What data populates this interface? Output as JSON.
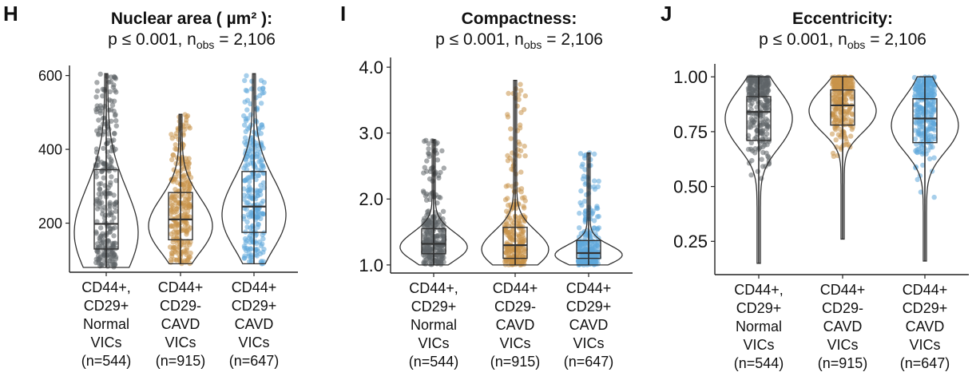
{
  "panels": [
    {
      "label": "H",
      "title": "Nuclear area ( µm² ):",
      "subtitle": {
        "p": "p ≤ 0.001, n",
        "sub": "obs",
        "n": " = 2,106"
      },
      "ylim": [
        80,
        610
      ],
      "yticks": [
        "200",
        "400",
        "600"
      ],
      "ytick_values": [
        200,
        400,
        600
      ]
    },
    {
      "label": "I",
      "title": "Compactness:",
      "subtitle": {
        "p": "p ≤ 0.001, n",
        "sub": "obs",
        "n": " = 2,106"
      },
      "ylim": [
        0.95,
        4.05
      ],
      "yticks": [
        "1.0",
        "2.0",
        "3.0",
        "4.0"
      ],
      "ytick_values": [
        1.0,
        2.0,
        3.0,
        4.0
      ]
    },
    {
      "label": "J",
      "title": "Eccentricity:",
      "subtitle": {
        "p": "p ≤ 0.001, n",
        "sub": "obs",
        "n": " = 2,106"
      },
      "ylim": [
        0.12,
        1.03
      ],
      "yticks": [
        "0.25",
        "0.50",
        "0.75",
        "1.00"
      ],
      "ytick_values": [
        0.25,
        0.5,
        0.75,
        1.0
      ]
    }
  ],
  "categories": [
    {
      "lines": [
        "CD44+,",
        "CD29+",
        "Normal",
        "VICs",
        "(n=544)"
      ]
    },
    {
      "lines": [
        "CD44+",
        "CD29-",
        "CAVD",
        "VICs",
        "(n=915)"
      ]
    },
    {
      "lines": [
        "CD44+",
        "CD29+",
        "CAVD",
        "VICs",
        "(n=647)"
      ]
    }
  ],
  "colors": {
    "normal": "#5f6468",
    "cd29neg": "#c8944a",
    "cd29pos": "#5fa8da"
  },
  "chart_data": [
    {
      "type": "violin",
      "title": "Nuclear area ( µm² ):",
      "ylim": [
        80,
        610
      ],
      "series": [
        {
          "category": "CD44+, CD29+ Normal VICs (n=544)",
          "min": 80,
          "q1": 130,
          "median": 198,
          "q3": 345,
          "max": 605
        },
        {
          "category": "CD44+ CD29- CAVD VICs (n=915)",
          "min": 90,
          "q1": 155,
          "median": 210,
          "q3": 283,
          "max": 495
        },
        {
          "category": "CD44+ CD29+ CAVD VICs (n=647)",
          "min": 90,
          "q1": 175,
          "median": 245,
          "q3": 340,
          "max": 605
        }
      ]
    },
    {
      "type": "violin",
      "title": "Compactness:",
      "ylim": [
        0.95,
        4.05
      ],
      "series": [
        {
          "category": "CD44+, CD29+ Normal VICs (n=544)",
          "min": 1.0,
          "q1": 1.17,
          "median": 1.32,
          "q3": 1.55,
          "max": 2.9
        },
        {
          "category": "CD44+ CD29- CAVD VICs (n=915)",
          "min": 1.0,
          "q1": 1.1,
          "median": 1.3,
          "q3": 1.57,
          "max": 3.8
        },
        {
          "category": "CD44+ CD29+ CAVD VICs (n=647)",
          "min": 1.0,
          "q1": 1.1,
          "median": 1.18,
          "q3": 1.37,
          "max": 2.7
        }
      ]
    },
    {
      "type": "violin",
      "title": "Eccentricity:",
      "ylim": [
        0.12,
        1.03
      ],
      "series": [
        {
          "category": "CD44+, CD29+ Normal VICs (n=544)",
          "min": 0.15,
          "q1": 0.71,
          "median": 0.84,
          "q3": 0.91,
          "max": 1.0
        },
        {
          "category": "CD44+ CD29- CAVD VICs (n=915)",
          "min": 0.26,
          "q1": 0.78,
          "median": 0.87,
          "q3": 0.94,
          "max": 1.0
        },
        {
          "category": "CD44+ CD29+ CAVD VICs (n=647)",
          "min": 0.16,
          "q1": 0.7,
          "median": 0.81,
          "q3": 0.9,
          "max": 1.0
        }
      ]
    }
  ]
}
